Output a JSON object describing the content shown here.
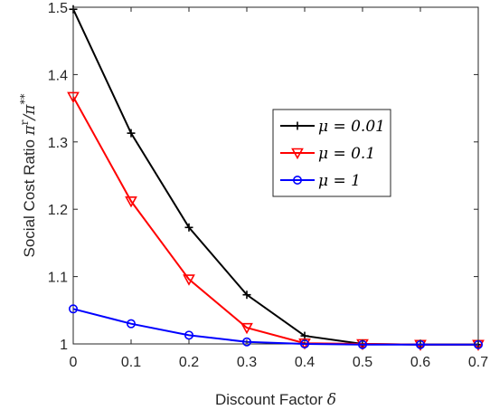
{
  "chart_data": {
    "type": "line",
    "x": [
      0,
      0.1,
      0.2,
      0.3,
      0.4,
      0.5,
      0.6,
      0.7
    ],
    "xlabel": "Discount Factor",
    "xlabel_symbol": "δ",
    "ylabel": "Social Cost Ratio",
    "ylabel_expr": "π^r/π^**",
    "xlim": [
      0,
      0.7
    ],
    "ylim": [
      1,
      1.5
    ],
    "xticks": [
      "0",
      "0.1",
      "0.2",
      "0.3",
      "0.4",
      "0.5",
      "0.6",
      "0.7"
    ],
    "yticks": [
      "1",
      "1.1",
      "1.2",
      "1.3",
      "1.4",
      "1.5"
    ],
    "grid": false,
    "legend_position": "center-right",
    "series": [
      {
        "name": "μ = 0.01",
        "color": "#000000",
        "marker": "plus",
        "values": [
          1.497,
          1.313,
          1.173,
          1.073,
          1.012,
          1.0,
          0.999,
          0.999
        ]
      },
      {
        "name": "μ = 0.1",
        "color": "#ff0000",
        "marker": "triangle-down",
        "values": [
          1.367,
          1.212,
          1.096,
          1.024,
          1.001,
          1.0,
          0.999,
          0.999
        ]
      },
      {
        "name": "μ = 1",
        "color": "#0000ff",
        "marker": "circle",
        "values": [
          1.052,
          1.03,
          1.013,
          1.003,
          1.0,
          0.999,
          0.999,
          0.999
        ]
      }
    ]
  }
}
